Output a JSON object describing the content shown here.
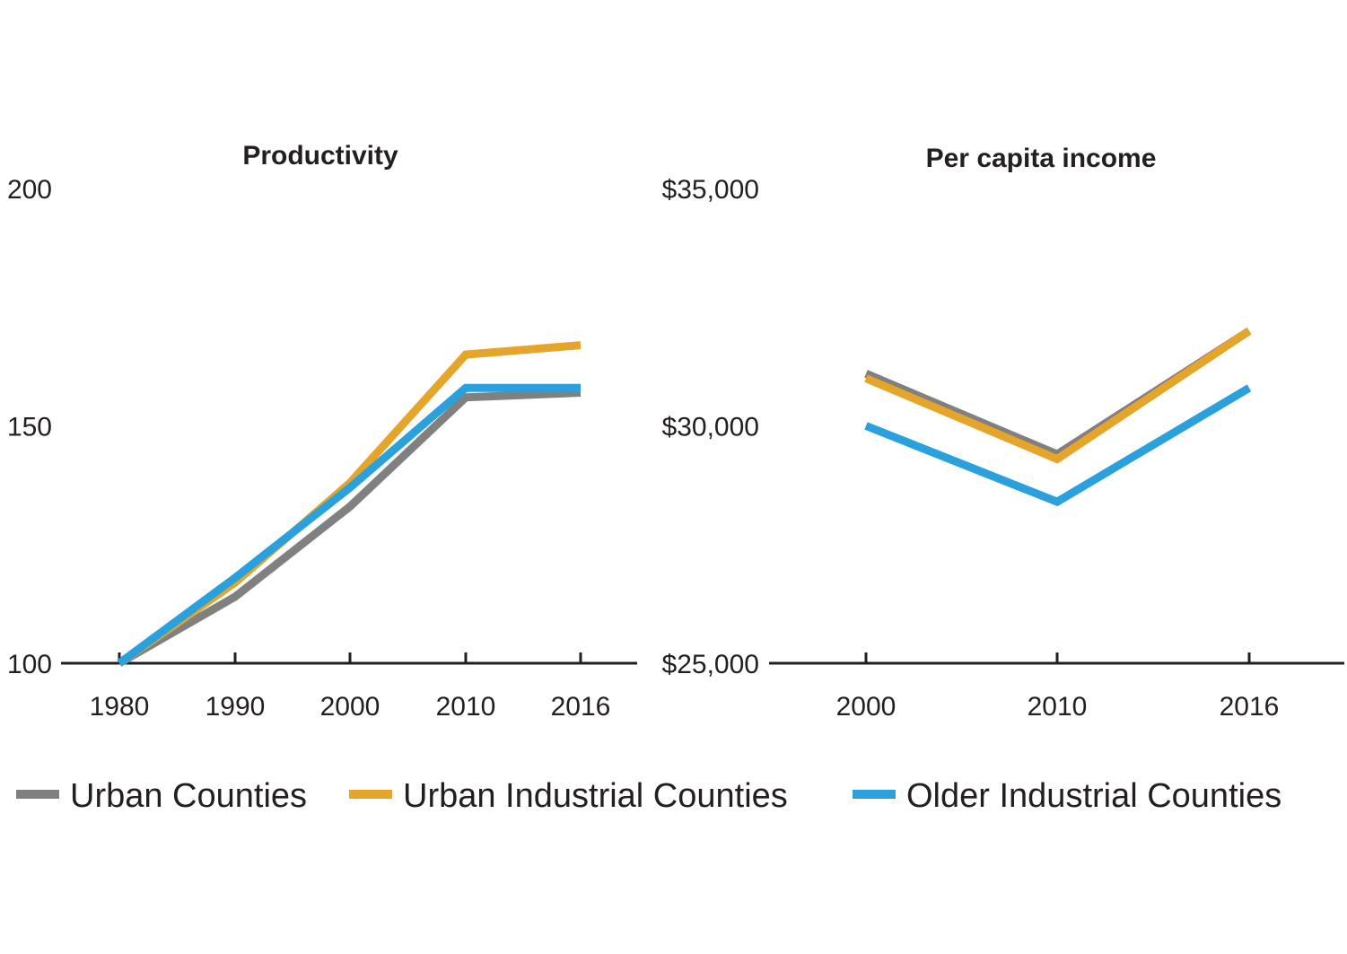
{
  "colors": {
    "urban": "#808080",
    "urban_industrial": "#e4a52a",
    "older_industrial": "#2aa1dc"
  },
  "chart_data": [
    {
      "type": "line",
      "title": "Productivity",
      "x": [
        "1980",
        "1990",
        "2000",
        "2010",
        "2016"
      ],
      "ylim": [
        100,
        200
      ],
      "yticks": [
        "100",
        "150",
        "200"
      ],
      "grid": false,
      "series": [
        {
          "name": "Urban Counties",
          "color_key": "urban",
          "values": [
            100,
            114,
            133,
            156,
            157
          ]
        },
        {
          "name": "Urban Industrial Counties",
          "color_key": "urban_industrial",
          "values": [
            100,
            117,
            138,
            165,
            167
          ]
        },
        {
          "name": "Older Industrial Counties",
          "color_key": "older_industrial",
          "values": [
            100,
            118,
            137,
            158,
            158
          ]
        }
      ]
    },
    {
      "type": "line",
      "title": "Per capita income",
      "x": [
        "2000",
        "2010",
        "2016"
      ],
      "ylim": [
        25000,
        35000
      ],
      "yticks": [
        "$25,000",
        "$30,000",
        "$35,000"
      ],
      "grid": false,
      "series": [
        {
          "name": "Urban Counties",
          "color_key": "urban",
          "values": [
            31100,
            29400,
            32000
          ]
        },
        {
          "name": "Urban Industrial Counties",
          "color_key": "urban_industrial",
          "values": [
            31000,
            29300,
            32000
          ]
        },
        {
          "name": "Older Industrial Counties",
          "color_key": "older_industrial",
          "values": [
            30000,
            28400,
            30800
          ]
        }
      ]
    }
  ],
  "legend": {
    "placement": "bottom",
    "items": [
      {
        "label": "Urban Counties",
        "color_key": "urban"
      },
      {
        "label": "Urban Industrial Counties",
        "color_key": "urban_industrial"
      },
      {
        "label": "Older Industrial Counties",
        "color_key": "older_industrial"
      }
    ]
  }
}
